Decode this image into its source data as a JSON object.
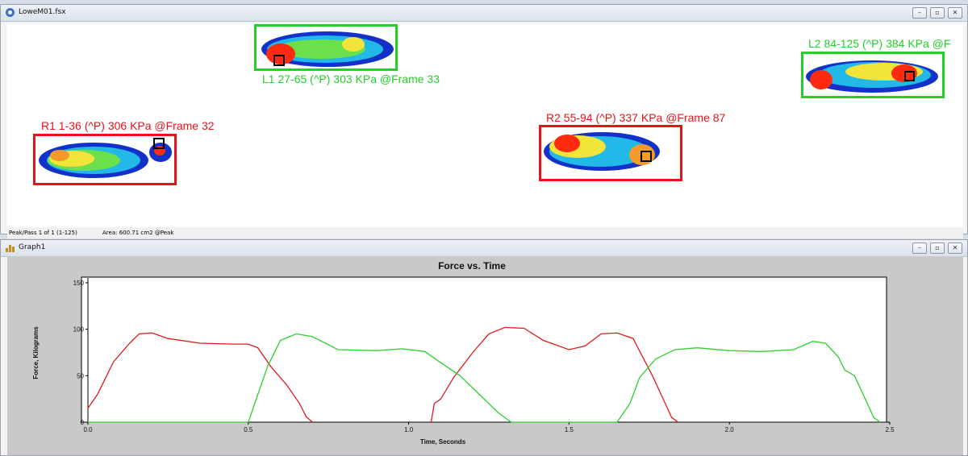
{
  "window1": {
    "title": "LoweM01.fsx"
  },
  "window2": {
    "title": "Graph1"
  },
  "controls": {
    "minimize": "–",
    "restore": "▫",
    "close": "✕"
  },
  "footprints": [
    {
      "id": "R1",
      "label": "R1 1-36 (^P) 306 KPa @Frame 32",
      "color": "#e5141a"
    },
    {
      "id": "L1",
      "label": "L1 27-65 (^P) 303 KPa @Frame 33",
      "color": "#22d02a"
    },
    {
      "id": "R2",
      "label": "R2 55-94 (^P) 337 KPa @Frame 87",
      "color": "#e5141a"
    },
    {
      "id": "L2",
      "label": "L2 84-125 (^P) 384 KPa @F",
      "color": "#22d02a"
    }
  ],
  "status": {
    "pass": "Peak/Pass 1 of 1 (1-125)",
    "area": "Area: 600.71 cm2 @Peak"
  },
  "chart_data": {
    "type": "line",
    "title": "Force vs. Time",
    "xlabel": "Time, Seconds",
    "ylabel": "Force, Kilograms",
    "xlim": [
      0,
      2.5
    ],
    "ylim": [
      0,
      150
    ],
    "xticks": [
      "0.0",
      "0.5",
      "1.0",
      "1.5",
      "2.0",
      "2.5"
    ],
    "yticks": [
      "0",
      "50",
      "100",
      "150"
    ],
    "grid": false,
    "series": [
      {
        "color": "#e01b1b",
        "points": [
          [
            0,
            15
          ],
          [
            0.03,
            30
          ],
          [
            0.08,
            65
          ],
          [
            0.13,
            85
          ],
          [
            0.16,
            95
          ],
          [
            0.2,
            96
          ],
          [
            0.25,
            90
          ],
          [
            0.35,
            85
          ],
          [
            0.45,
            84
          ],
          [
            0.5,
            84
          ],
          [
            0.53,
            80
          ],
          [
            0.57,
            60
          ],
          [
            0.62,
            40
          ],
          [
            0.66,
            20
          ],
          [
            0.68,
            6
          ],
          [
            0.7,
            0
          ]
        ]
      },
      {
        "color": "#e01b1b",
        "points": [
          [
            1.07,
            0
          ],
          [
            1.08,
            20
          ],
          [
            1.1,
            25
          ],
          [
            1.14,
            48
          ],
          [
            1.2,
            75
          ],
          [
            1.25,
            95
          ],
          [
            1.3,
            102
          ],
          [
            1.36,
            101
          ],
          [
            1.42,
            88
          ],
          [
            1.5,
            78
          ],
          [
            1.55,
            82
          ],
          [
            1.6,
            95
          ],
          [
            1.65,
            96
          ],
          [
            1.7,
            90
          ],
          [
            1.73,
            70
          ],
          [
            1.76,
            50
          ],
          [
            1.8,
            20
          ],
          [
            1.82,
            5
          ],
          [
            1.84,
            0
          ]
        ]
      },
      {
        "color": "#2fd02f",
        "points": [
          [
            0,
            0
          ],
          [
            0.5,
            0
          ],
          [
            0.52,
            20
          ],
          [
            0.56,
            60
          ],
          [
            0.6,
            88
          ],
          [
            0.65,
            95
          ],
          [
            0.7,
            92
          ],
          [
            0.78,
            78
          ],
          [
            0.9,
            77
          ],
          [
            0.98,
            79
          ],
          [
            1.05,
            76
          ],
          [
            1.1,
            64
          ],
          [
            1.16,
            50
          ],
          [
            1.22,
            30
          ],
          [
            1.28,
            10
          ],
          [
            1.32,
            0
          ]
        ]
      },
      {
        "color": "#2fd02f",
        "points": [
          [
            1.32,
            0
          ],
          [
            1.65,
            0
          ],
          [
            1.69,
            20
          ],
          [
            1.72,
            48
          ],
          [
            1.77,
            68
          ],
          [
            1.83,
            78
          ],
          [
            1.9,
            80
          ],
          [
            2.0,
            77
          ],
          [
            2.1,
            76
          ],
          [
            2.2,
            78
          ],
          [
            2.26,
            87
          ],
          [
            2.3,
            85
          ],
          [
            2.34,
            70
          ],
          [
            2.36,
            56
          ],
          [
            2.39,
            50
          ],
          [
            2.43,
            20
          ],
          [
            2.45,
            5
          ],
          [
            2.47,
            0
          ]
        ]
      }
    ]
  }
}
